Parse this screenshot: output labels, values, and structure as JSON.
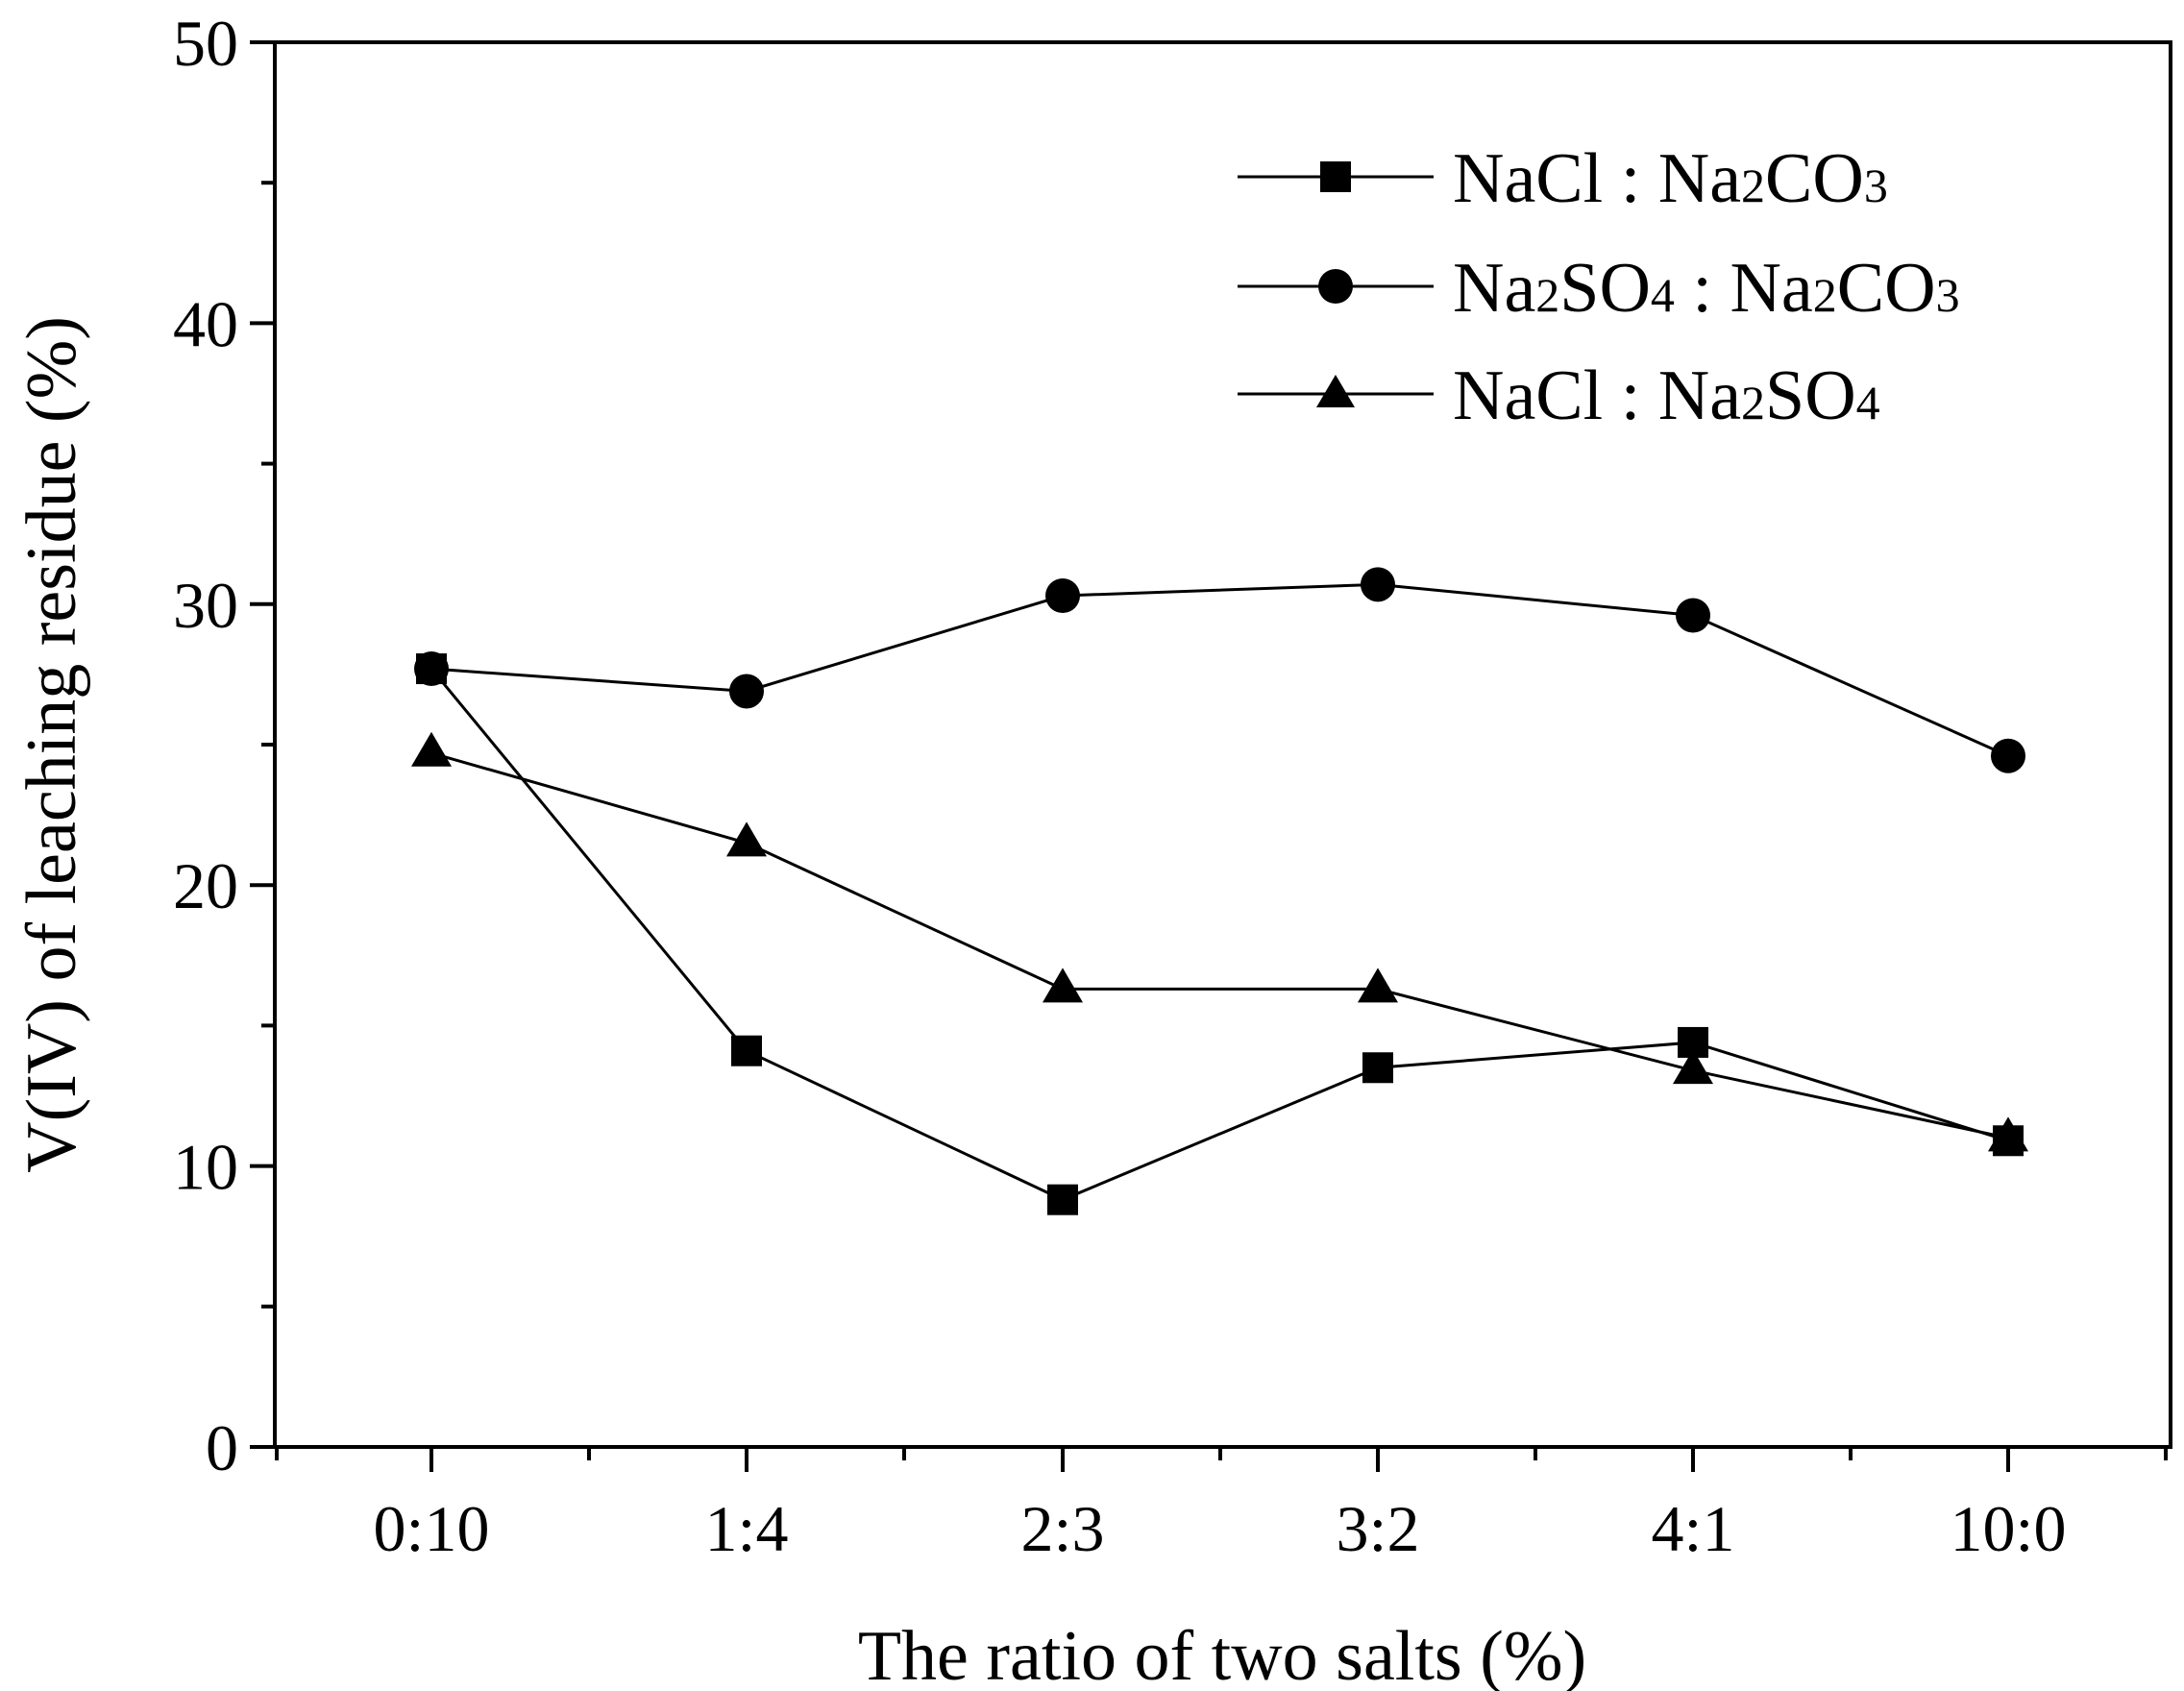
{
  "chart_data": {
    "type": "line",
    "title": "",
    "xlabel": "The ratio of  two salts (%)",
    "ylabel": "V(IV) of leaching residue (%)",
    "categories": [
      "0:10",
      "1:4",
      "2:3",
      "3:2",
      "4:1",
      "10:0"
    ],
    "ylim": [
      0,
      50
    ],
    "yticks": [
      "0",
      "10",
      "20",
      "30",
      "40",
      "50"
    ],
    "legend_position": "top-right",
    "series": [
      {
        "name": "NaCl : Na2CO3",
        "marker": "square",
        "legend": {
          "text_a": "NaCl : Na",
          "sub_a": "2",
          "text_b": "CO",
          "sub_b": "3"
        },
        "values": [
          27.7,
          14.1,
          8.8,
          13.5,
          14.4,
          10.9
        ]
      },
      {
        "name": "Na2SO4 : Na2CO3",
        "marker": "circle",
        "legend": {
          "text_a": "Na",
          "sub_a": "2",
          "text_b": "SO",
          "sub_b": "4",
          "text_c": " : Na",
          "sub_c": "2",
          "text_d": "CO",
          "sub_d": "3"
        },
        "values": [
          27.7,
          26.9,
          30.3,
          30.7,
          29.6,
          24.6
        ]
      },
      {
        "name": "NaCl : Na2SO4",
        "marker": "triangle",
        "legend": {
          "text_a": "NaCl : Na",
          "sub_a": "2",
          "text_b": "SO",
          "sub_b": "4"
        },
        "values": [
          24.7,
          21.5,
          16.3,
          16.3,
          13.4,
          11.0
        ]
      }
    ]
  }
}
